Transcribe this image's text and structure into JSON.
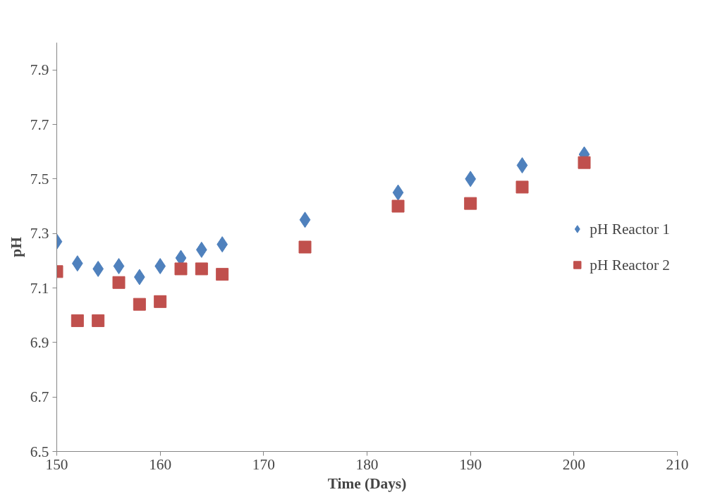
{
  "chart_data": {
    "type": "scatter",
    "xlabel": "Time (Days)",
    "ylabel": "pH",
    "x": [
      150,
      152,
      154,
      156,
      158,
      160,
      162,
      164,
      166,
      174,
      183,
      190,
      195,
      201
    ],
    "series": [
      {
        "name": "pH Reactor 1",
        "color": "#4f81bd",
        "marker": "diamond",
        "values": [
          7.27,
          7.19,
          7.17,
          7.18,
          7.14,
          7.18,
          7.21,
          7.24,
          7.26,
          7.35,
          7.45,
          7.5,
          7.55,
          7.59
        ]
      },
      {
        "name": "pH Reactor 2",
        "color": "#c0504d",
        "marker": "square",
        "values": [
          7.16,
          6.98,
          6.98,
          7.12,
          7.04,
          7.05,
          7.17,
          7.17,
          7.15,
          7.25,
          7.4,
          7.41,
          7.47,
          7.56
        ]
      }
    ],
    "xlim": [
      150,
      210
    ],
    "xticks": [
      150,
      160,
      170,
      180,
      190,
      200,
      210
    ],
    "ylim": [
      6.5,
      8.0
    ],
    "yticks": [
      {
        "value": 6.5,
        "label": "6.5"
      },
      {
        "value": 6.7,
        "label": "6.7"
      },
      {
        "value": 6.9,
        "label": "6.9"
      },
      {
        "value": 7.1,
        "label": "7.1"
      },
      {
        "value": 7.3,
        "label": "7.3"
      },
      {
        "value": 7.5,
        "label": "7.5"
      },
      {
        "value": 7.7,
        "label": "7.7"
      },
      {
        "value": 7.9,
        "label": "7.9"
      }
    ],
    "grid": false,
    "legend": "right"
  }
}
